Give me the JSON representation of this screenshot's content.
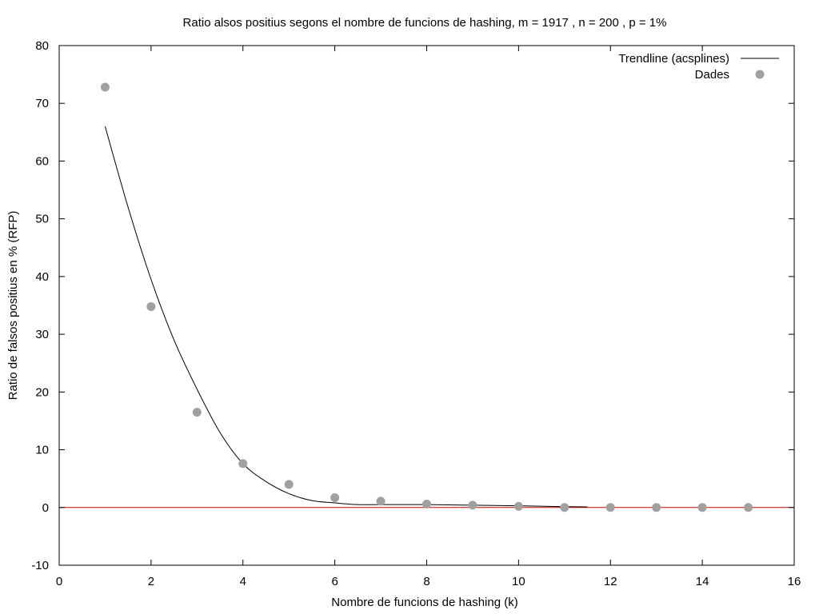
{
  "chart_data": {
    "type": "scatter",
    "title": "Ratio alsos positius segons el nombre de funcions de hashing, m = 1917 , n = 200 , p = 1%",
    "xlabel": "Nombre de funcions de hashing (k)",
    "ylabel": "Ratio de falsos positius en % (RFP)",
    "xlim": [
      0,
      16
    ],
    "ylim": [
      -10,
      80
    ],
    "xticks": [
      0,
      2,
      4,
      6,
      8,
      10,
      12,
      14,
      16
    ],
    "yticks": [
      -10,
      0,
      10,
      20,
      30,
      40,
      50,
      60,
      70,
      80
    ],
    "grid": false,
    "legend_position": "top-right",
    "zero_line": {
      "y": 0,
      "color": "#cc0000"
    },
    "series": [
      {
        "name": "Trendline (acsplines)",
        "kind": "line",
        "color": "#000000",
        "x": [
          1,
          1.5,
          2,
          2.5,
          3,
          3.5,
          4,
          4.5,
          5,
          5.5,
          6,
          6.5,
          7,
          8,
          9,
          10,
          11,
          11.5
        ],
        "values": [
          66,
          52,
          39.5,
          29,
          20.5,
          13,
          7.6,
          4.5,
          2.4,
          1.2,
          0.8,
          0.5,
          0.5,
          0.5,
          0.4,
          0.3,
          0.15,
          0.1
        ]
      },
      {
        "name": "Dades",
        "kind": "scatter",
        "color": "#a0a0a0",
        "x": [
          1,
          2,
          3,
          4,
          5,
          6,
          7,
          8,
          9,
          10,
          11,
          12,
          13,
          14,
          15
        ],
        "values": [
          72.8,
          34.8,
          16.5,
          7.6,
          4.0,
          1.7,
          1.1,
          0.6,
          0.4,
          0.2,
          0.0,
          0.0,
          0.0,
          0.0,
          0.0
        ]
      }
    ]
  }
}
